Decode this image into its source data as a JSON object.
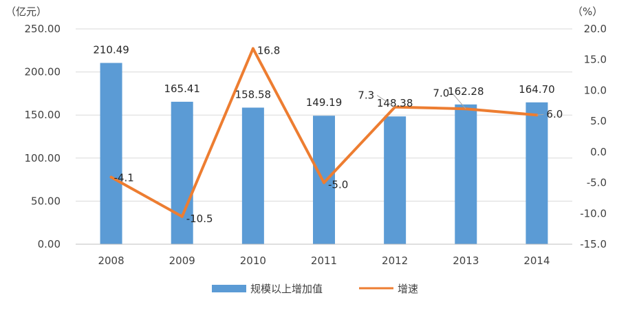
{
  "chart_data": {
    "type": "bar",
    "categories": [
      "2008",
      "2009",
      "2010",
      "2011",
      "2012",
      "2013",
      "2014"
    ],
    "series": [
      {
        "name": "规模以上增加值",
        "type": "bar",
        "axis": "left",
        "color": "#5B9BD5",
        "values": [
          210.49,
          165.41,
          158.58,
          149.19,
          148.38,
          162.28,
          164.7
        ],
        "labels": [
          "210.49",
          "165.41",
          "158.58",
          "149.19",
          "148.38",
          "162.28",
          "164.70"
        ]
      },
      {
        "name": "增速",
        "type": "line",
        "axis": "right",
        "color": "#ED7D31",
        "values": [
          -4.1,
          -10.5,
          16.8,
          -5.0,
          7.3,
          7.0,
          6.0
        ],
        "labels": [
          "-4.1",
          "-10.5",
          "16.8",
          "-5.0",
          "7.3",
          "7.0",
          "6.0"
        ]
      }
    ],
    "y_left": {
      "unit": "（亿元）",
      "ylim": [
        0,
        250
      ],
      "ticks": [
        "0.00",
        "50.00",
        "100.00",
        "150.00",
        "200.00",
        "250.00"
      ]
    },
    "y_right": {
      "unit": "（%）",
      "ylim": [
        -15,
        20
      ],
      "ticks": [
        "-15.0",
        "-10.0",
        "-5.0",
        "0.0",
        "5.0",
        "10.0",
        "15.0",
        "20.0"
      ]
    },
    "grid": true,
    "legend": "bottom-center"
  }
}
